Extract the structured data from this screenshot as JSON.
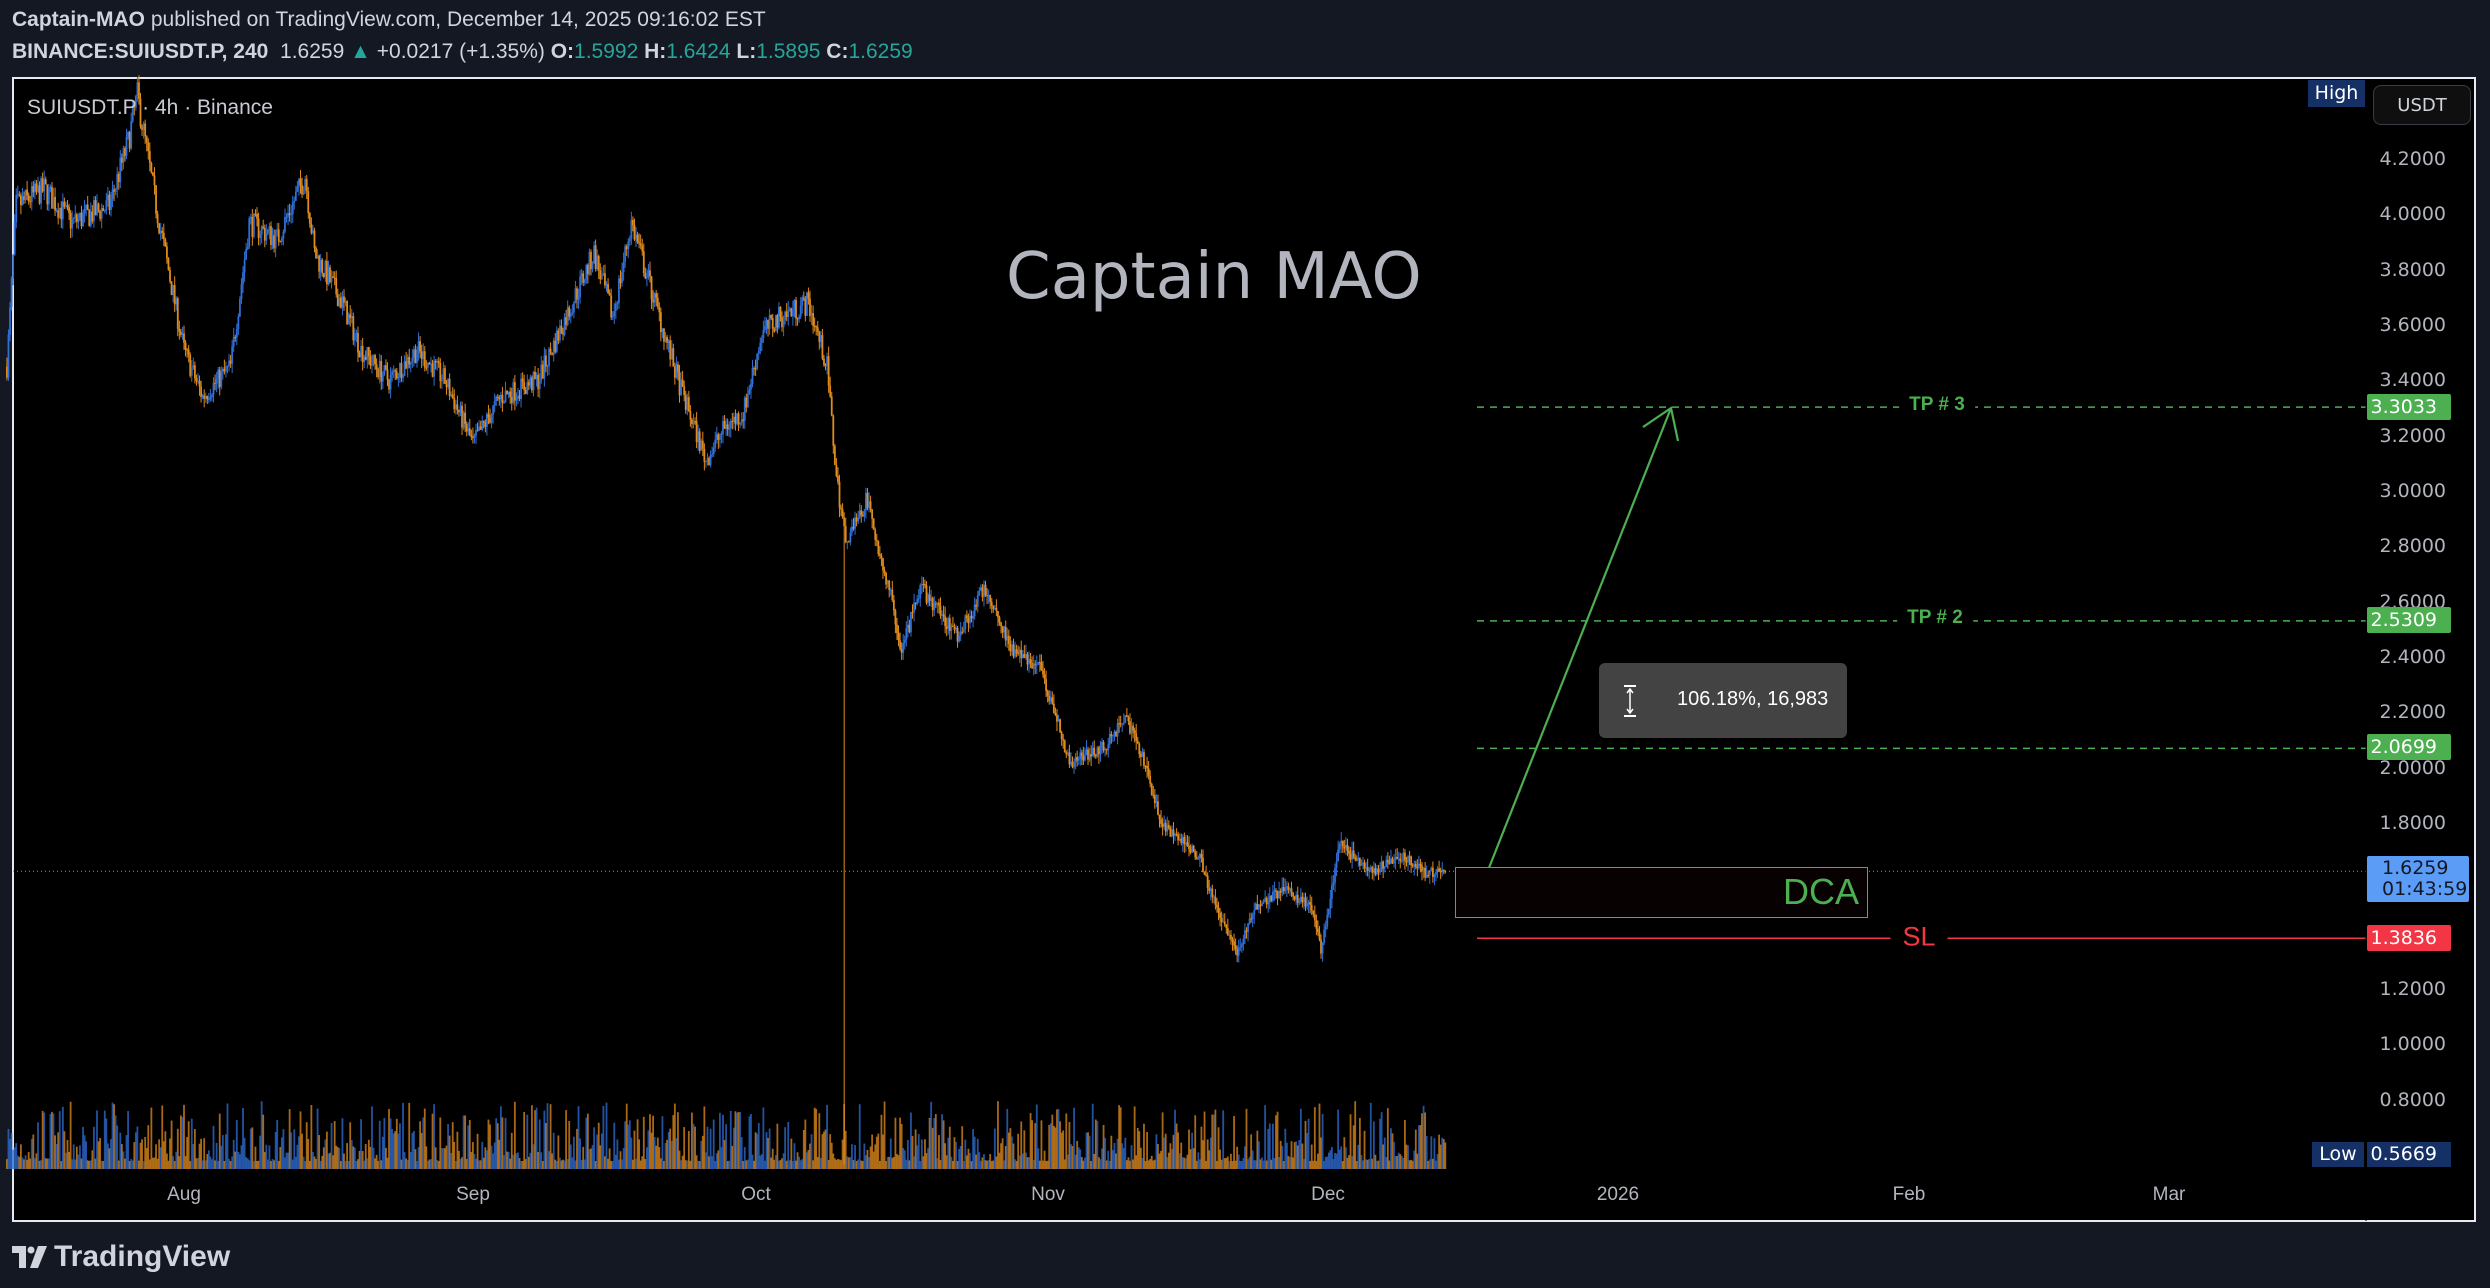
{
  "header": {
    "author": "Captain-MAO",
    "published_text": "published on TradingView.com, December 14, 2025 09:16:02 EST",
    "symbol": "BINANCE:SUIUSDT.P, 240",
    "last": "1.6259",
    "change": "+0.0217 (+1.35%)",
    "o_label": "O:",
    "o": "1.5992",
    "h_label": "H:",
    "h": "1.6424",
    "l_label": "L:",
    "l": "1.5895",
    "c_label": "C:",
    "c": "1.6259",
    "up_color": "#26a69a"
  },
  "legend": {
    "symbol": "SUIUSDT.P",
    "interval": "4h",
    "sep": "·",
    "exchange": "Binance"
  },
  "watermark": "Captain MAO",
  "price_axis": {
    "currency_button": "USDT",
    "high_label": "High",
    "low_label": "Low",
    "low_value": "0.5669",
    "ticks": [
      "4.2000",
      "4.0000",
      "3.8000",
      "3.6000",
      "3.4000",
      "3.2000",
      "3.0000",
      "2.8000",
      "2.6000",
      "2.4000",
      "2.2000",
      "2.0000",
      "1.8000",
      "1.2000",
      "1.0000",
      "0.8000"
    ],
    "current_price": "1.6259",
    "countdown": "01:43:59"
  },
  "time_axis": {
    "ticks": [
      "Aug",
      "Sep",
      "Oct",
      "Nov",
      "Dec",
      "2026",
      "Feb",
      "Mar"
    ]
  },
  "drawings": {
    "tp3": {
      "label": "TP # 3",
      "price": "3.3033",
      "color": "#4caf50"
    },
    "tp2": {
      "label": "TP # 2",
      "price": "2.5309",
      "color": "#4caf50"
    },
    "tp1": {
      "price": "2.0699",
      "color": "#4caf50"
    },
    "sl": {
      "label": "SL",
      "price": "1.3836",
      "color": "#f23645"
    },
    "dca": {
      "label": "DCA",
      "top": 1.64,
      "bottom": 1.455
    },
    "measure": {
      "text": "106.18%, 16,983"
    },
    "arrow": {
      "from_price": 1.62,
      "to_price": 3.3
    }
  },
  "chart_data": {
    "type": "candlestick",
    "symbol": "SUIUSDT.P",
    "interval": "4h",
    "ylim": [
      0.5669,
      4.43
    ],
    "up_color": "#2f6fd6",
    "down_color": "#e08b1d",
    "last_close": 1.6259,
    "crash": {
      "date": "2025-10-10",
      "low": 0.5669
    },
    "price_path": [
      [
        "2025-07-13",
        3.45
      ],
      [
        "2025-07-14",
        4.03
      ],
      [
        "2025-07-17",
        4.09
      ],
      [
        "2025-07-20",
        3.97
      ],
      [
        "2025-07-24",
        4.03
      ],
      [
        "2025-07-26",
        4.26
      ],
      [
        "2025-07-27",
        4.43
      ],
      [
        "2025-07-29",
        4.03
      ],
      [
        "2025-08-01",
        3.51
      ],
      [
        "2025-08-03",
        3.34
      ],
      [
        "2025-08-06",
        3.45
      ],
      [
        "2025-08-08",
        3.97
      ],
      [
        "2025-08-11",
        3.91
      ],
      [
        "2025-08-14",
        4.14
      ],
      [
        "2025-08-15",
        3.86
      ],
      [
        "2025-08-18",
        3.68
      ],
      [
        "2025-08-20",
        3.51
      ],
      [
        "2025-08-23",
        3.4
      ],
      [
        "2025-08-26",
        3.51
      ],
      [
        "2025-08-29",
        3.4
      ],
      [
        "2025-09-01",
        3.17
      ],
      [
        "2025-09-04",
        3.34
      ],
      [
        "2025-09-08",
        3.4
      ],
      [
        "2025-09-11",
        3.63
      ],
      [
        "2025-09-14",
        3.86
      ],
      [
        "2025-09-16",
        3.63
      ],
      [
        "2025-09-18",
        3.97
      ],
      [
        "2025-09-21",
        3.63
      ],
      [
        "2025-09-23",
        3.4
      ],
      [
        "2025-09-26",
        3.11
      ],
      [
        "2025-09-28",
        3.23
      ],
      [
        "2025-09-30",
        3.28
      ],
      [
        "2025-10-02",
        3.57
      ],
      [
        "2025-10-04",
        3.63
      ],
      [
        "2025-10-07",
        3.68
      ],
      [
        "2025-10-09",
        3.45
      ],
      [
        "2025-10-10",
        3.05
      ],
      [
        "2025-10-11",
        2.82
      ],
      [
        "2025-10-13",
        2.94
      ],
      [
        "2025-10-13",
        3.0
      ],
      [
        "2025-10-16",
        2.59
      ],
      [
        "2025-10-17",
        2.42
      ],
      [
        "2025-10-19",
        2.65
      ],
      [
        "2025-10-23",
        2.48
      ],
      [
        "2025-10-26",
        2.65
      ],
      [
        "2025-10-29",
        2.42
      ],
      [
        "2025-11-01",
        2.36
      ],
      [
        "2025-11-04",
        2.02
      ],
      [
        "2025-11-08",
        2.08
      ],
      [
        "2025-11-10",
        2.19
      ],
      [
        "2025-11-12",
        2.02
      ],
      [
        "2025-11-14",
        1.79
      ],
      [
        "2025-11-18",
        1.68
      ],
      [
        "2025-11-19",
        1.56
      ],
      [
        "2025-11-22",
        1.33
      ],
      [
        "2025-11-24",
        1.5
      ],
      [
        "2025-11-27",
        1.56
      ],
      [
        "2025-11-30",
        1.5
      ],
      [
        "2025-12-01",
        1.34
      ],
      [
        "2025-12-03",
        1.73
      ],
      [
        "2025-12-06",
        1.62
      ],
      [
        "2025-12-10",
        1.68
      ],
      [
        "2025-12-12",
        1.62
      ],
      [
        "2025-12-14",
        1.6259
      ]
    ]
  },
  "footer": {
    "brand": "TradingView"
  }
}
